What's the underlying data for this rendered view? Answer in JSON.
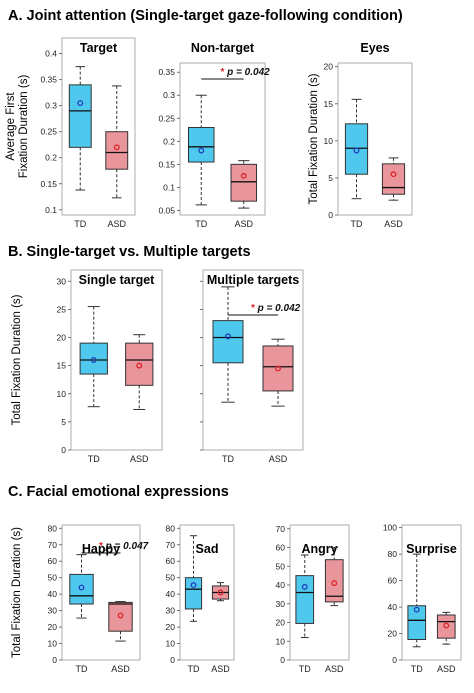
{
  "sections": [
    {
      "title": "A. Joint attention (Single-target gaze-following condition)"
    },
    {
      "title": "B. Single-target vs. Multiple targets"
    },
    {
      "title": "C. Facial emotional expressions"
    }
  ],
  "colors": {
    "td_fill": "#4fc8ee",
    "td_mean": "#1f3fbf",
    "asd_fill": "#e8959b",
    "asd_mean": "#e0202a",
    "sig_star": "#e0202a",
    "box_border": "#333333"
  },
  "chart_data": [
    {
      "type": "box",
      "title": "Target",
      "ylabel": "Average First Fixation Duration (s)",
      "ylim": [
        0.09,
        0.43
      ],
      "yticks": [
        0.1,
        0.15,
        0.2,
        0.25,
        0.3,
        0.35,
        0.4
      ],
      "yticklabels": [
        "0.1",
        "0.15",
        "0.2",
        "0.25",
        "0.3",
        "0.35",
        "0.4"
      ],
      "categories": [
        "TD",
        "ASD"
      ],
      "series": [
        {
          "min": 0.138,
          "q1": 0.22,
          "median": 0.29,
          "q3": 0.34,
          "max": 0.375,
          "mean": 0.305
        },
        {
          "min": 0.123,
          "q1": 0.178,
          "median": 0.21,
          "q3": 0.25,
          "max": 0.338,
          "mean": 0.22
        }
      ],
      "significance": null
    },
    {
      "type": "box",
      "title": "Non-target",
      "ylabel": "",
      "ylim": [
        0.04,
        0.37
      ],
      "yticks": [
        0.05,
        0.1,
        0.15,
        0.2,
        0.25,
        0.3,
        0.35
      ],
      "yticklabels": [
        "0.05",
        "0.1",
        "0.15",
        "0.2",
        "0.25",
        "0.3",
        "0.35"
      ],
      "categories": [
        "TD",
        "ASD"
      ],
      "series": [
        {
          "min": 0.062,
          "q1": 0.155,
          "median": 0.188,
          "q3": 0.23,
          "max": 0.3,
          "mean": 0.18
        },
        {
          "min": 0.055,
          "q1": 0.07,
          "median": 0.112,
          "q3": 0.15,
          "max": 0.158,
          "mean": 0.125
        }
      ],
      "significance": {
        "star": "*",
        "text": "p = 0.042"
      }
    },
    {
      "type": "box",
      "title": "Eyes",
      "ylabel": "Total Fixation Duration (s)",
      "ylim": [
        0,
        20.5
      ],
      "yticks": [
        0,
        5,
        10,
        15,
        20
      ],
      "yticklabels": [
        "0",
        "5",
        "10",
        "15",
        "20"
      ],
      "categories": [
        "TD",
        "ASD"
      ],
      "series": [
        {
          "min": 2.2,
          "q1": 5.5,
          "median": 9.0,
          "q3": 12.3,
          "max": 15.6,
          "mean": 8.7
        },
        {
          "min": 2.0,
          "q1": 2.8,
          "median": 3.7,
          "q3": 6.9,
          "max": 7.7,
          "mean": 5.5
        }
      ],
      "significance": null
    },
    {
      "type": "box",
      "title": "Single target",
      "ylabel": "Total Fixation Duration (s)",
      "ylim": [
        0,
        32
      ],
      "yticks": [
        0,
        5,
        10,
        15,
        20,
        25,
        30
      ],
      "yticklabels": [
        "0",
        "5",
        "10",
        "15",
        "20",
        "25",
        "30"
      ],
      "categories": [
        "TD",
        "ASD"
      ],
      "series": [
        {
          "min": 7.7,
          "q1": 13.5,
          "median": 16.0,
          "q3": 19.0,
          "max": 25.5,
          "mean": 16.0
        },
        {
          "min": 7.2,
          "q1": 11.5,
          "median": 16.0,
          "q3": 19.0,
          "max": 20.5,
          "mean": 15.0
        }
      ],
      "significance": null
    },
    {
      "type": "box",
      "title": "Multiple targets",
      "ylabel": "",
      "ylim": [
        0,
        32
      ],
      "yticks": [
        0,
        5,
        10,
        15,
        20,
        25,
        30
      ],
      "yticklabels": [],
      "categories": [
        "TD",
        "ASD"
      ],
      "series": [
        {
          "min": 8.5,
          "q1": 15.5,
          "median": 20.0,
          "q3": 23.0,
          "max": 29.0,
          "mean": 20.2
        },
        {
          "min": 7.8,
          "q1": 10.5,
          "median": 14.8,
          "q3": 18.5,
          "max": 19.7,
          "mean": 14.5
        }
      ],
      "significance": {
        "star": "*",
        "text": "p = 0.042"
      }
    },
    {
      "type": "box",
      "title": "Happy",
      "ylabel": "Total Fixation Duration (s)",
      "ylim": [
        0,
        82
      ],
      "yticks": [
        0,
        10,
        20,
        30,
        40,
        50,
        60,
        70,
        80
      ],
      "yticklabels": [
        "0",
        "10",
        "20",
        "30",
        "40",
        "50",
        "60",
        "70",
        "80"
      ],
      "categories": [
        "TD",
        "ASD"
      ],
      "series": [
        {
          "min": 25.5,
          "q1": 34.0,
          "median": 39.0,
          "q3": 52.0,
          "max": 64.0,
          "mean": 44.0
        },
        {
          "min": 11.5,
          "q1": 17.5,
          "median": 34.0,
          "q3": 35.0,
          "max": 35.5,
          "mean": 27.0
        }
      ],
      "significance": {
        "star": "*",
        "text": "p = 0.047"
      }
    },
    {
      "type": "box",
      "title": "Sad",
      "ylabel": "",
      "ylim": [
        0,
        82
      ],
      "yticks": [
        0,
        10,
        20,
        30,
        40,
        50,
        60,
        70,
        80
      ],
      "yticklabels": [
        "0",
        "10",
        "20",
        "30",
        "40",
        "50",
        "60",
        "70",
        "80"
      ],
      "categories": [
        "TD",
        "ASD"
      ],
      "series": [
        {
          "min": 23.5,
          "q1": 31.0,
          "median": 43.0,
          "q3": 50.0,
          "max": 75.5,
          "mean": 45.5
        },
        {
          "min": 36.0,
          "q1": 37.0,
          "median": 41.0,
          "q3": 45.0,
          "max": 47.0,
          "mean": 41.0
        }
      ],
      "significance": null
    },
    {
      "type": "box",
      "title": "Angry",
      "ylabel": "",
      "ylim": [
        0,
        72
      ],
      "yticks": [
        0,
        10,
        20,
        30,
        40,
        50,
        60,
        70
      ],
      "yticklabels": [
        "0",
        "10",
        "20",
        "30",
        "40",
        "50",
        "60",
        "70"
      ],
      "categories": [
        "TD",
        "ASD"
      ],
      "series": [
        {
          "min": 12.0,
          "q1": 19.5,
          "median": 36.0,
          "q3": 45.0,
          "max": 56.0,
          "mean": 39.0
        },
        {
          "min": 29.0,
          "q1": 31.0,
          "median": 34.0,
          "q3": 53.5,
          "max": 60.0,
          "mean": 41.0
        }
      ],
      "significance": null
    },
    {
      "type": "box",
      "title": "Surprise",
      "ylabel": "",
      "ylim": [
        0,
        102
      ],
      "yticks": [
        0,
        20,
        40,
        60,
        80,
        100
      ],
      "yticklabels": [
        "0",
        "20",
        "40",
        "60",
        "80",
        "100"
      ],
      "categories": [
        "TD",
        "ASD"
      ],
      "series": [
        {
          "min": 10.0,
          "q1": 15.5,
          "median": 30.0,
          "q3": 41.0,
          "max": 80.0,
          "mean": 38.0
        },
        {
          "min": 12.0,
          "q1": 16.5,
          "median": 29.0,
          "q3": 34.0,
          "max": 36.0,
          "mean": 26.0
        }
      ],
      "significance": null
    }
  ]
}
